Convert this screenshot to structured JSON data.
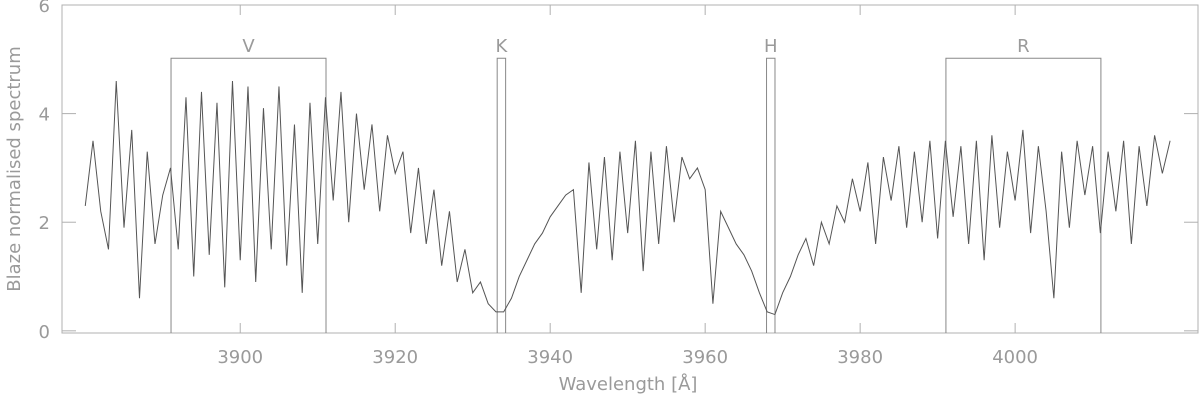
{
  "chart_data": {
    "type": "line",
    "x_label": "Wavelength [Å]",
    "y_label": "Blaze normalised spectrum",
    "xlim": [
      3877,
      4023.6
    ],
    "ylim": [
      -0.04,
      6
    ],
    "xticks": [
      3900,
      3920,
      3940,
      3960,
      3980,
      4000
    ],
    "yticks": [
      0,
      2,
      4,
      6
    ],
    "color": "#555555",
    "bands": [
      {
        "label": "V",
        "xlim": [
          3891.07,
          3911.07
        ],
        "top": 5.02
      },
      {
        "label": "K",
        "xlim": [
          3933.16,
          3934.25
        ],
        "top": 5.02
      },
      {
        "label": "H",
        "xlim": [
          3967.92,
          3969.01
        ],
        "top": 5.02
      },
      {
        "label": "R",
        "xlim": [
          3991.07,
          4011.07
        ],
        "top": 5.02
      }
    ],
    "x": [
      3880,
      3881,
      3882,
      3883,
      3884,
      3885,
      3886,
      3887,
      3888,
      3889,
      3890,
      3891,
      3892,
      3893,
      3894,
      3895,
      3896,
      3897,
      3898,
      3899,
      3900,
      3901,
      3902,
      3903,
      3904,
      3905,
      3906,
      3907,
      3908,
      3909,
      3910,
      3911,
      3912,
      3913,
      3914,
      3915,
      3916,
      3917,
      3918,
      3919,
      3920,
      3921,
      3922,
      3923,
      3924,
      3925,
      3926,
      3927,
      3928,
      3929,
      3930,
      3931,
      3932,
      3933,
      3934,
      3935,
      3936,
      3937,
      3938,
      3939,
      3940,
      3941,
      3942,
      3943,
      3944,
      3945,
      3946,
      3947,
      3948,
      3949,
      3950,
      3951,
      3952,
      3953,
      3954,
      3955,
      3956,
      3957,
      3958,
      3959,
      3960,
      3961,
      3962,
      3963,
      3964,
      3965,
      3966,
      3967,
      3968,
      3969,
      3970,
      3971,
      3972,
      3973,
      3974,
      3975,
      3976,
      3977,
      3978,
      3979,
      3980,
      3981,
      3982,
      3983,
      3984,
      3985,
      3986,
      3987,
      3988,
      3989,
      3990,
      3991,
      3992,
      3993,
      3994,
      3995,
      3996,
      3997,
      3998,
      3999,
      4000,
      4001,
      4002,
      4003,
      4004,
      4005,
      4006,
      4007,
      4008,
      4009,
      4010,
      4011,
      4012,
      4013,
      4014,
      4015,
      4016,
      4017,
      4018,
      4019,
      4020
    ],
    "values": [
      2.3,
      3.5,
      2.2,
      1.5,
      4.6,
      1.9,
      3.7,
      0.6,
      3.3,
      1.6,
      2.5,
      3.0,
      1.5,
      4.3,
      1.0,
      4.4,
      1.4,
      4.2,
      0.8,
      4.6,
      1.3,
      4.5,
      0.9,
      4.1,
      1.5,
      4.5,
      1.2,
      3.8,
      0.7,
      4.2,
      1.6,
      4.3,
      2.4,
      4.4,
      2.0,
      4.0,
      2.6,
      3.8,
      2.2,
      3.6,
      2.9,
      3.3,
      1.8,
      3.0,
      1.6,
      2.6,
      1.2,
      2.2,
      0.9,
      1.5,
      0.7,
      0.9,
      0.5,
      0.35,
      0.35,
      0.6,
      1.0,
      1.3,
      1.6,
      1.8,
      2.1,
      2.3,
      2.5,
      2.6,
      0.7,
      3.1,
      1.5,
      3.2,
      1.3,
      3.3,
      1.8,
      3.5,
      1.1,
      3.3,
      1.6,
      3.4,
      2.0,
      3.2,
      2.8,
      3.0,
      2.6,
      0.5,
      2.2,
      1.9,
      1.6,
      1.4,
      1.1,
      0.7,
      0.35,
      0.3,
      0.7,
      1.0,
      1.4,
      1.7,
      1.2,
      2.0,
      1.6,
      2.3,
      2.0,
      2.8,
      2.2,
      3.1,
      1.6,
      3.2,
      2.4,
      3.4,
      1.9,
      3.3,
      2.0,
      3.5,
      1.7,
      3.5,
      2.1,
      3.4,
      1.6,
      3.5,
      1.3,
      3.6,
      1.9,
      3.3,
      2.4,
      3.7,
      1.8,
      3.4,
      2.2,
      0.6,
      3.3,
      1.9,
      3.5,
      2.5,
      3.4,
      1.8,
      3.3,
      2.2,
      3.5,
      1.6,
      3.4,
      2.3,
      3.6,
      2.9,
      3.5
    ]
  }
}
